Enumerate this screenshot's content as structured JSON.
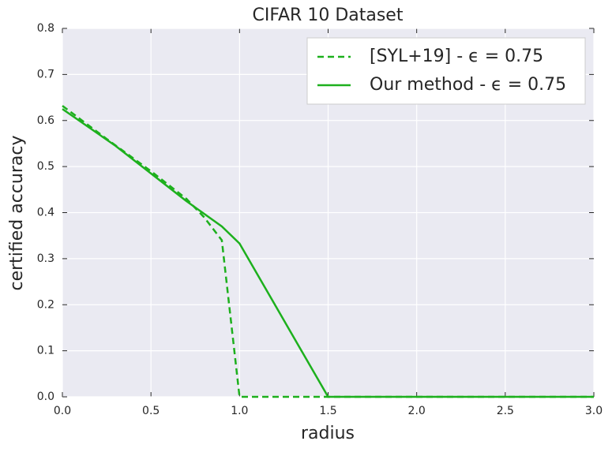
{
  "chart_data": {
    "type": "line",
    "title": "CIFAR 10 Dataset",
    "xlabel": "radius",
    "ylabel": "certified accuracy",
    "xlim": [
      0,
      3
    ],
    "ylim": [
      0,
      0.8
    ],
    "xticks": [
      {
        "value": 0,
        "label": "0.0"
      },
      0.5,
      {
        "value": 1,
        "label": "1.0"
      },
      1.5,
      {
        "value": 2,
        "label": "2.0"
      },
      2.5,
      {
        "value": 3,
        "label": "3.0"
      }
    ],
    "yticks": [
      {
        "value": 0,
        "label": "0.0"
      },
      0.1,
      0.2,
      0.3,
      0.4,
      0.5,
      0.6,
      0.7,
      0.8
    ],
    "grid": true,
    "legend": "upper right",
    "series": [
      {
        "name": "[SYL+19] - ϵ = 0.75",
        "color": "#1db01d",
        "dash": true,
        "x": [
          0,
          0.25,
          0.5,
          0.7,
          0.8,
          0.9,
          1.0,
          3.0
        ],
        "values": [
          0.632,
          0.56,
          0.49,
          0.43,
          0.39,
          0.34,
          0.0,
          0.0
        ]
      },
      {
        "name": "Our method - ϵ = 0.75",
        "color": "#1db01d",
        "dash": false,
        "x": [
          0,
          0.3,
          0.5,
          0.7,
          0.9,
          1.0,
          1.5,
          3.0
        ],
        "values": [
          0.625,
          0.545,
          0.485,
          0.425,
          0.37,
          0.333,
          0.0,
          0.0
        ]
      }
    ]
  }
}
